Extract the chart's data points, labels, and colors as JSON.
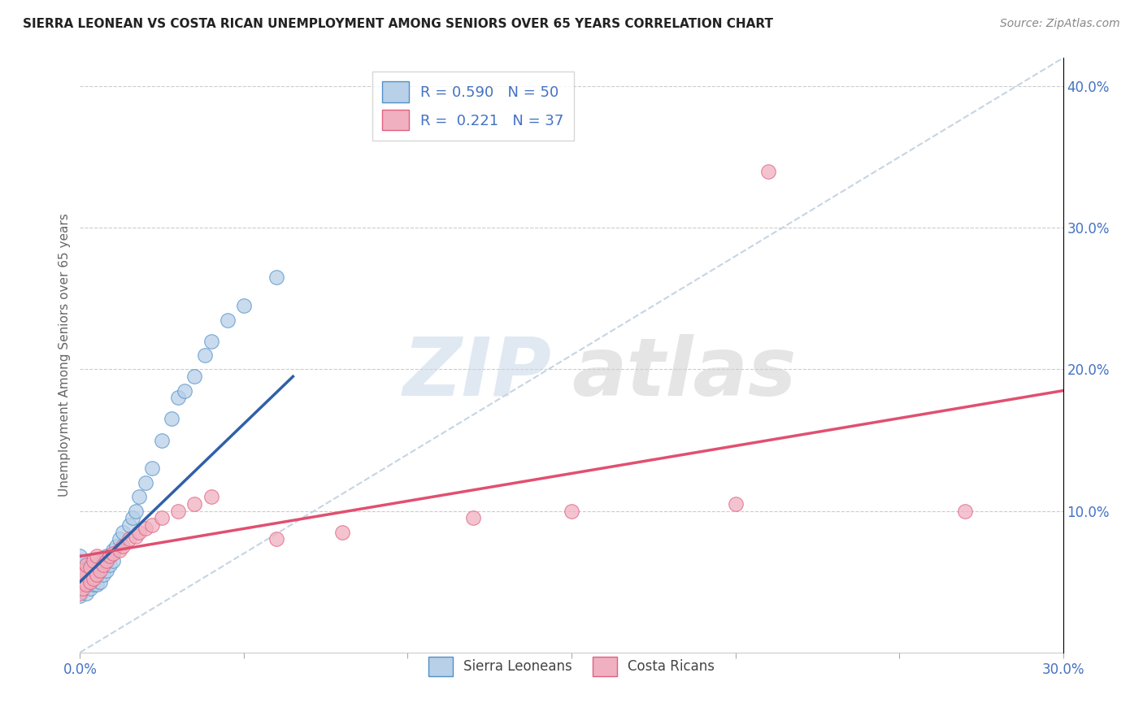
{
  "title": "SIERRA LEONEAN VS COSTA RICAN UNEMPLOYMENT AMONG SENIORS OVER 65 YEARS CORRELATION CHART",
  "source": "Source: ZipAtlas.com",
  "ylabel_left": "Unemployment Among Seniors over 65 years",
  "xmin": 0.0,
  "xmax": 0.3,
  "ymin": 0.0,
  "ymax": 0.42,
  "legend1_label": "R = 0.590   N = 50",
  "legend2_label": "R =  0.221   N = 37",
  "watermark_zip": "ZIP",
  "watermark_atlas": "atlas",
  "blue_fill": "#b8d0e8",
  "blue_edge": "#5090c8",
  "blue_line": "#3060a8",
  "pink_fill": "#f0b0c0",
  "pink_edge": "#e06080",
  "pink_line": "#e05070",
  "diag_color": "#c0d0e0",
  "sierra_x": [
    0.0,
    0.0,
    0.0,
    0.0,
    0.0,
    0.0,
    0.0,
    0.0,
    0.0,
    0.0,
    0.002,
    0.002,
    0.002,
    0.002,
    0.003,
    0.003,
    0.003,
    0.004,
    0.004,
    0.005,
    0.005,
    0.005,
    0.006,
    0.006,
    0.007,
    0.007,
    0.008,
    0.008,
    0.009,
    0.01,
    0.01,
    0.011,
    0.012,
    0.013,
    0.015,
    0.016,
    0.017,
    0.018,
    0.02,
    0.022,
    0.025,
    0.028,
    0.03,
    0.032,
    0.035,
    0.038,
    0.04,
    0.045,
    0.05,
    0.06
  ],
  "sierra_y": [
    0.04,
    0.045,
    0.05,
    0.052,
    0.055,
    0.058,
    0.06,
    0.062,
    0.065,
    0.068,
    0.042,
    0.048,
    0.052,
    0.058,
    0.045,
    0.05,
    0.06,
    0.048,
    0.055,
    0.048,
    0.055,
    0.062,
    0.05,
    0.06,
    0.055,
    0.065,
    0.058,
    0.068,
    0.062,
    0.065,
    0.072,
    0.075,
    0.08,
    0.085,
    0.09,
    0.095,
    0.1,
    0.11,
    0.12,
    0.13,
    0.15,
    0.165,
    0.18,
    0.185,
    0.195,
    0.21,
    0.22,
    0.235,
    0.245,
    0.265
  ],
  "costa_x": [
    0.0,
    0.0,
    0.0,
    0.0,
    0.001,
    0.001,
    0.002,
    0.002,
    0.003,
    0.003,
    0.004,
    0.004,
    0.005,
    0.005,
    0.006,
    0.007,
    0.008,
    0.009,
    0.01,
    0.012,
    0.013,
    0.015,
    0.017,
    0.018,
    0.02,
    0.022,
    0.025,
    0.03,
    0.035,
    0.04,
    0.06,
    0.08,
    0.12,
    0.15,
    0.2,
    0.21,
    0.27
  ],
  "costa_y": [
    0.042,
    0.048,
    0.052,
    0.058,
    0.045,
    0.055,
    0.048,
    0.062,
    0.05,
    0.06,
    0.052,
    0.065,
    0.055,
    0.068,
    0.058,
    0.062,
    0.065,
    0.068,
    0.07,
    0.072,
    0.075,
    0.08,
    0.082,
    0.085,
    0.088,
    0.09,
    0.095,
    0.1,
    0.105,
    0.11,
    0.08,
    0.085,
    0.095,
    0.1,
    0.105,
    0.34,
    0.1
  ],
  "blue_trend_x": [
    0.0,
    0.065
  ],
  "blue_trend_y": [
    0.05,
    0.195
  ],
  "pink_trend_x": [
    0.0,
    0.3
  ],
  "pink_trend_y": [
    0.068,
    0.185
  ]
}
